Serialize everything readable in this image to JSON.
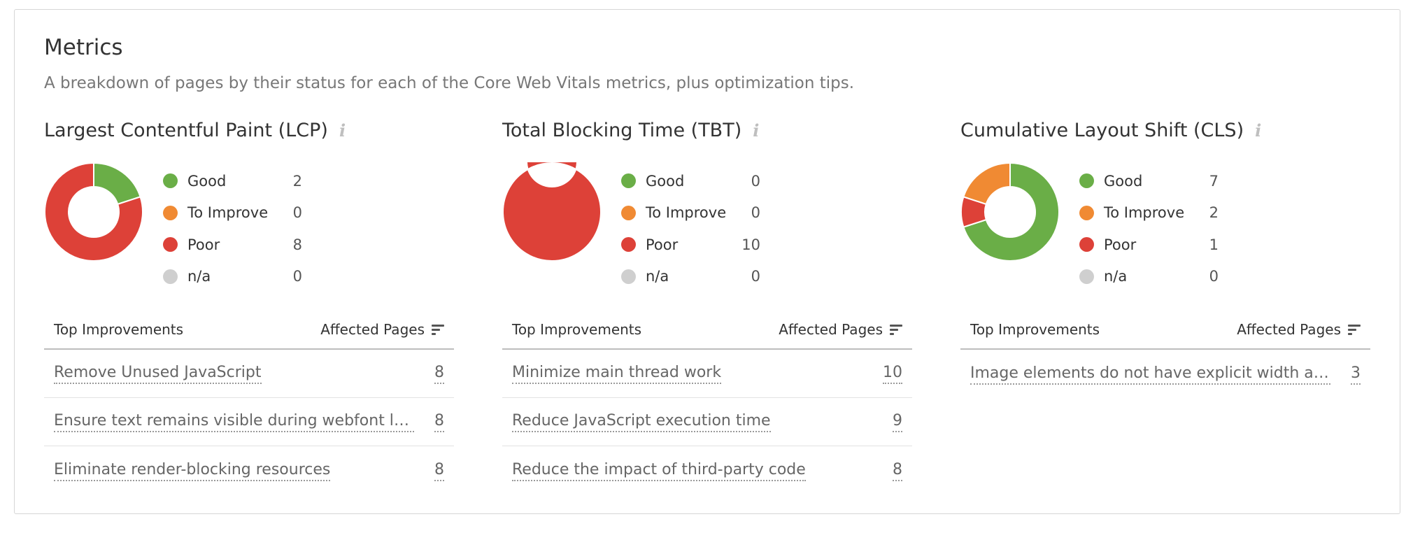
{
  "header": {
    "title": "Metrics",
    "subtitle": "A breakdown of pages by their status for each of the Core Web Vitals metrics, plus optimization tips."
  },
  "colors": {
    "good": "#6aae47",
    "to_improve": "#f08a33",
    "poor": "#dd4138",
    "na": "#cfcfcf"
  },
  "metrics": [
    {
      "title": "Largest Contentful Paint (LCP)",
      "legend": [
        {
          "label": "Good",
          "value": "2"
        },
        {
          "label": "To Improve",
          "value": "0"
        },
        {
          "label": "Poor",
          "value": "8"
        },
        {
          "label": "n/a",
          "value": "0"
        }
      ],
      "table": {
        "col_left": "Top Improvements",
        "col_right": "Affected Pages",
        "rows": [
          {
            "text": "Remove Unused JavaScript",
            "count": "8"
          },
          {
            "text": "Ensure text remains visible during webfont load",
            "count": "8"
          },
          {
            "text": "Eliminate render-blocking resources",
            "count": "8"
          }
        ]
      }
    },
    {
      "title": "Total Blocking Time (TBT)",
      "legend": [
        {
          "label": "Good",
          "value": "0"
        },
        {
          "label": "To Improve",
          "value": "0"
        },
        {
          "label": "Poor",
          "value": "10"
        },
        {
          "label": "n/a",
          "value": "0"
        }
      ],
      "table": {
        "col_left": "Top Improvements",
        "col_right": "Affected Pages",
        "rows": [
          {
            "text": "Minimize main thread work",
            "count": "10"
          },
          {
            "text": "Reduce JavaScript execution time",
            "count": "9"
          },
          {
            "text": "Reduce the impact of third-party code",
            "count": "8"
          }
        ]
      }
    },
    {
      "title": "Cumulative Layout Shift (CLS)",
      "legend": [
        {
          "label": "Good",
          "value": "7"
        },
        {
          "label": "To Improve",
          "value": "2"
        },
        {
          "label": "Poor",
          "value": "1"
        },
        {
          "label": "n/a",
          "value": "0"
        }
      ],
      "table": {
        "col_left": "Top Improvements",
        "col_right": "Affected Pages",
        "rows": [
          {
            "text": "Image elements do not have explicit width and height",
            "count": "3"
          }
        ]
      }
    }
  ]
}
